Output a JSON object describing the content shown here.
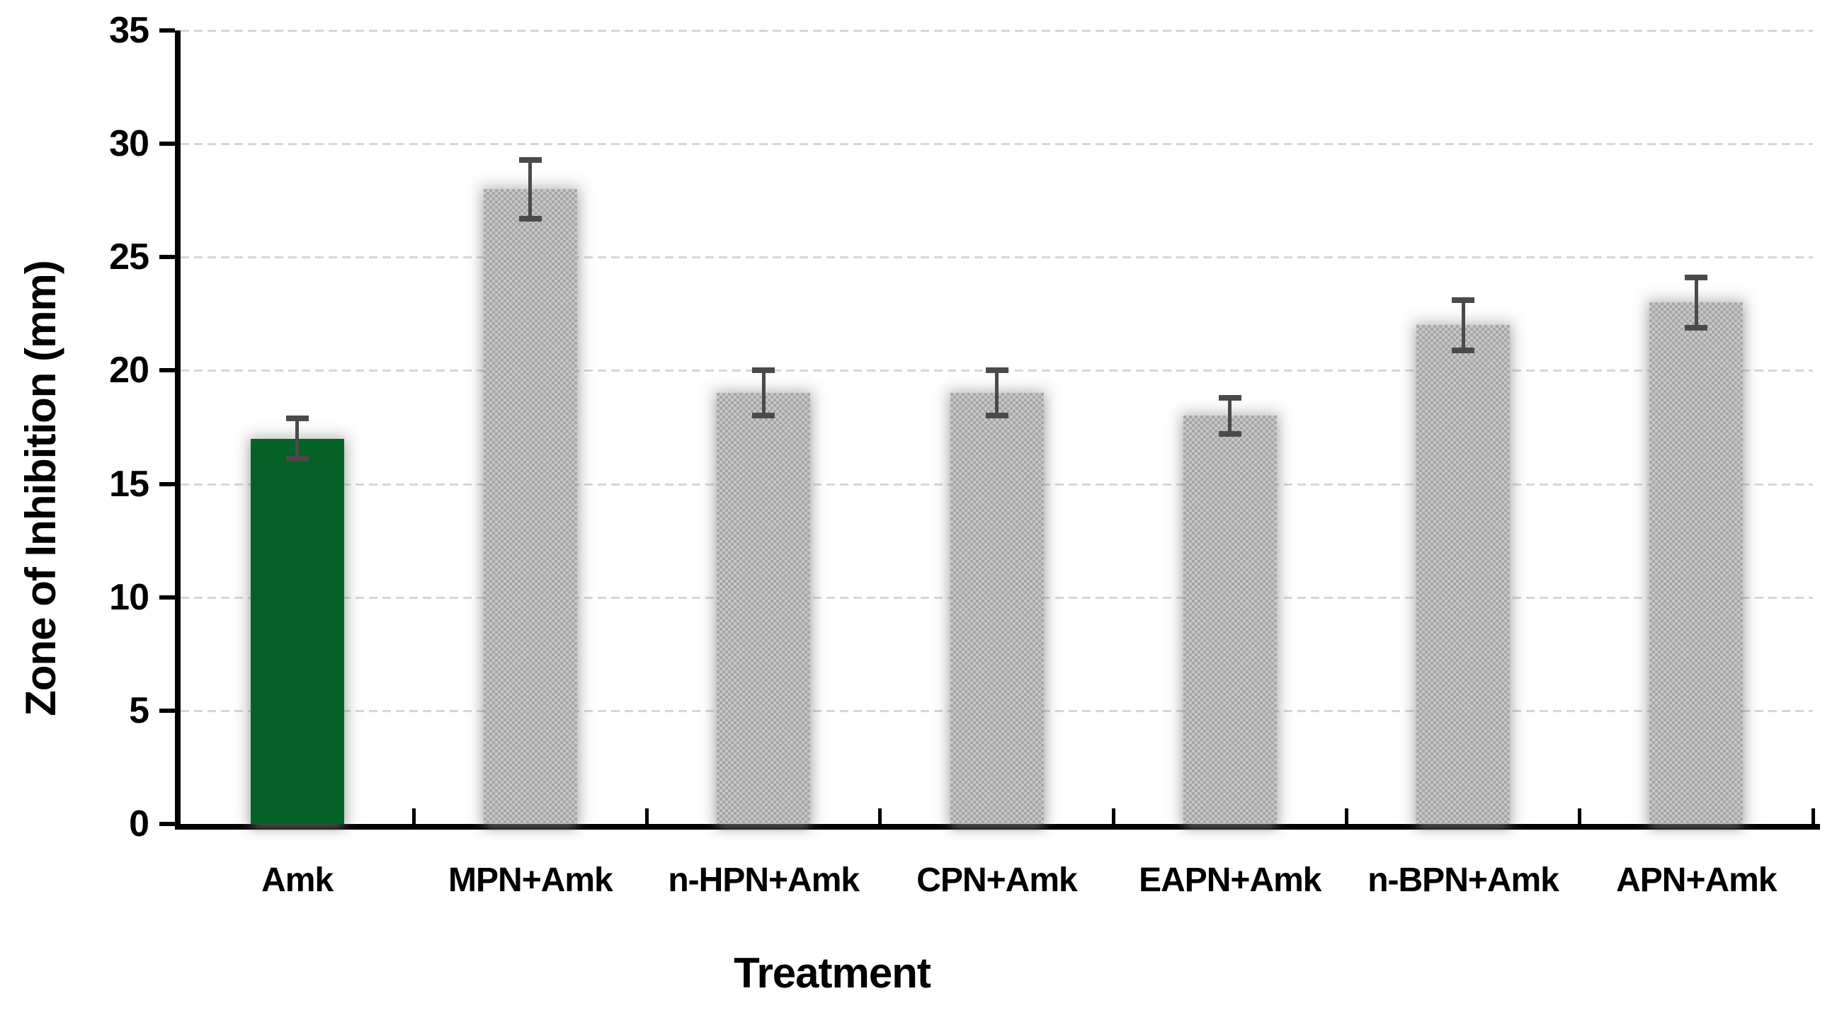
{
  "chart_data": {
    "type": "bar",
    "title": "",
    "xlabel": "Treatment",
    "ylabel": "Zone of Inhibition (mm)",
    "categories": [
      "Amk",
      "MPN+Amk",
      "n-HPN+Amk",
      "CPN+Amk",
      "EAPN+Amk",
      "n-BPN+Amk",
      "APN+Amk"
    ],
    "values": [
      17,
      28,
      19,
      19,
      18,
      22,
      23
    ],
    "error_bars": [
      0.9,
      1.3,
      1.0,
      1.0,
      0.8,
      1.1,
      1.1
    ],
    "ylim": [
      0,
      35
    ],
    "yticks": [
      0,
      5,
      10,
      15,
      20,
      25,
      30,
      35
    ],
    "grid": true,
    "legend": null,
    "highlight_index": 0,
    "colors": {
      "highlight_bar": "#056227",
      "default_bar": "#b7b7b7",
      "bar_pattern_light": "#c7c7c7",
      "bar_pattern_dark": "#a6a6a6",
      "error_bar": "#4a4a4a",
      "gridline": "#d6d6d6",
      "axis": "#000000",
      "text": "#000000"
    }
  }
}
